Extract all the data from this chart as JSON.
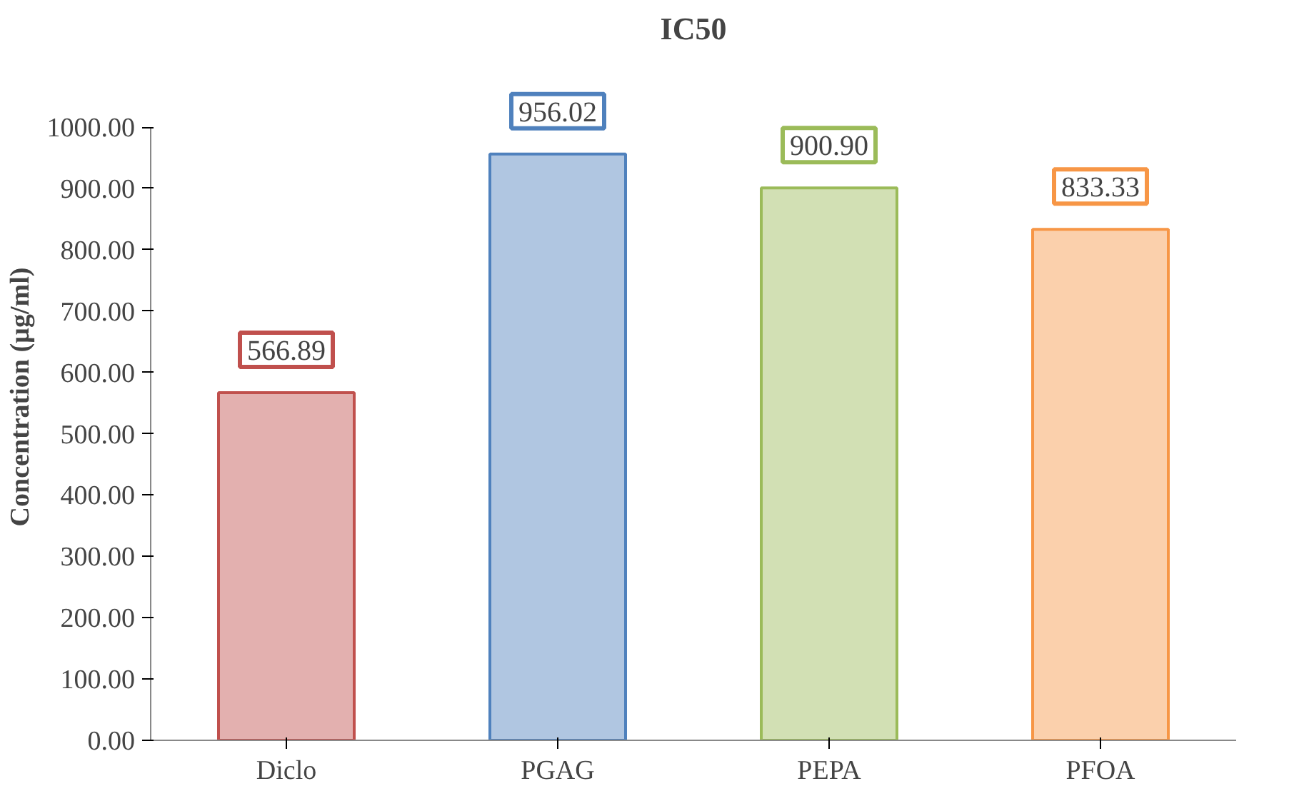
{
  "chart_data": {
    "type": "bar",
    "title": "IC50",
    "ylabel": "Concentration (µg/ml)",
    "categories": [
      "Diclo",
      "PGAG",
      "PEPA",
      "PFOA"
    ],
    "values": [
      566.89,
      956.02,
      900.9,
      833.33
    ],
    "value_labels": [
      "566.89",
      "956.02",
      "900.90",
      "833.33"
    ],
    "colors": [
      "#c0504d",
      "#4f81bd",
      "#9bbb59",
      "#f79646"
    ],
    "ylim": [
      0,
      1000
    ],
    "yticks": [
      {
        "value": 0,
        "label": "0.00"
      },
      {
        "value": 100,
        "label": "100.00"
      },
      {
        "value": 200,
        "label": "200.00"
      },
      {
        "value": 300,
        "label": "300.00"
      },
      {
        "value": 400,
        "label": "400.00"
      },
      {
        "value": 500,
        "label": "500.00"
      },
      {
        "value": 600,
        "label": "600.00"
      },
      {
        "value": 700,
        "label": "700.00"
      },
      {
        "value": 800,
        "label": "800.00"
      },
      {
        "value": 900,
        "label": "900.00"
      },
      {
        "value": 1000,
        "label": "1000.00"
      }
    ],
    "grid": false
  }
}
